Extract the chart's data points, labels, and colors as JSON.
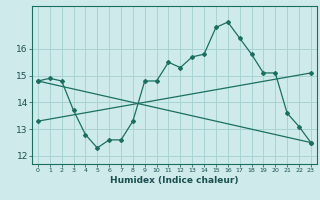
{
  "xlabel": "Humidex (Indice chaleur)",
  "background_color": "#ceeaea",
  "grid_color": "#a8d4d4",
  "line_color": "#1a7060",
  "xlim": [
    -0.5,
    23.5
  ],
  "ylim": [
    11.7,
    17.6
  ],
  "xticks": [
    0,
    1,
    2,
    3,
    4,
    5,
    6,
    7,
    8,
    9,
    10,
    11,
    12,
    13,
    14,
    15,
    16,
    17,
    18,
    19,
    20,
    21,
    22,
    23
  ],
  "yticks": [
    12,
    13,
    14,
    15,
    16
  ],
  "series1_x": [
    0,
    1,
    2,
    3,
    4,
    5,
    6,
    7,
    8,
    9,
    10,
    11,
    12,
    13,
    14,
    15,
    16,
    17,
    18,
    19,
    20,
    21,
    22,
    23
  ],
  "series1_y": [
    14.8,
    14.9,
    14.8,
    13.7,
    12.8,
    12.3,
    12.6,
    12.6,
    13.3,
    14.8,
    14.8,
    15.5,
    15.3,
    15.7,
    15.8,
    16.8,
    17.0,
    16.4,
    15.8,
    15.1,
    15.1,
    13.6,
    13.1,
    12.5
  ],
  "series2_x": [
    0,
    23
  ],
  "series2_y": [
    13.3,
    15.1
  ],
  "series3_x": [
    0,
    23
  ],
  "series3_y": [
    14.8,
    12.5
  ]
}
